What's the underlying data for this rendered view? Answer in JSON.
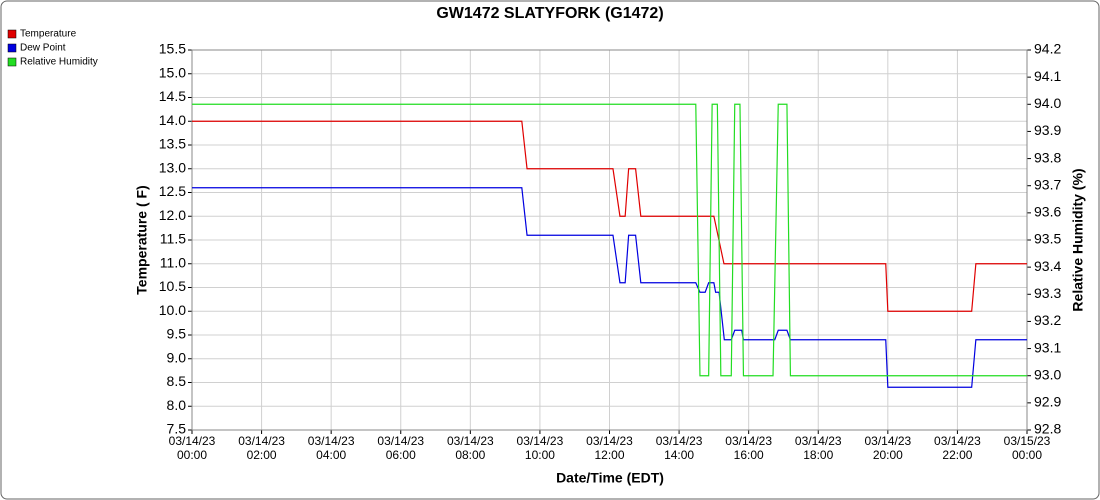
{
  "chart_data": {
    "type": "line",
    "title": "GW1472 SLATYFORK (G1472)",
    "xlabel": "Date/Time (EDT)",
    "ylabel": "Temperature ( F)",
    "y2label": "Relative Humidity (%)",
    "grid": true,
    "legend": "top-left",
    "xlim": [
      0,
      24
    ],
    "xticks": [
      {
        "value": 0,
        "label": "03/14/23\n00:00"
      },
      {
        "value": 2,
        "label": "03/14/23\n02:00"
      },
      {
        "value": 4,
        "label": "03/14/23\n04:00"
      },
      {
        "value": 6,
        "label": "03/14/23\n06:00"
      },
      {
        "value": 8,
        "label": "03/14/23\n08:00"
      },
      {
        "value": 10,
        "label": "03/14/23\n10:00"
      },
      {
        "value": 12,
        "label": "03/14/23\n12:00"
      },
      {
        "value": 14,
        "label": "03/14/23\n14:00"
      },
      {
        "value": 16,
        "label": "03/14/23\n16:00"
      },
      {
        "value": 18,
        "label": "03/14/23\n18:00"
      },
      {
        "value": 20,
        "label": "03/14/23\n20:00"
      },
      {
        "value": 22,
        "label": "03/14/23\n22:00"
      },
      {
        "value": 24,
        "label": "03/15/23\n00:00"
      }
    ],
    "ylim": [
      7.5,
      15.5
    ],
    "yticks": [
      7.5,
      {
        "value": 8,
        "label": "8.0"
      },
      8.5,
      {
        "value": 9,
        "label": "9.0"
      },
      9.5,
      {
        "value": 10,
        "label": "10.0"
      },
      10.5,
      {
        "value": 11,
        "label": "11.0"
      },
      11.5,
      {
        "value": 12,
        "label": "12.0"
      },
      12.5,
      {
        "value": 13,
        "label": "13.0"
      },
      13.5,
      {
        "value": 14,
        "label": "14.0"
      },
      14.5,
      {
        "value": 15,
        "label": "15.0"
      },
      15.5
    ],
    "y2lim": [
      92.8,
      94.2
    ],
    "y2ticks": [
      92.8,
      92.9,
      {
        "value": 93,
        "label": "93.0"
      },
      93.1,
      93.2,
      93.3,
      93.4,
      93.5,
      93.6,
      93.7,
      93.8,
      93.9,
      {
        "value": 94,
        "label": "94.0"
      },
      94.1,
      94.2
    ],
    "series": [
      {
        "name": "Temperature",
        "color": "#e00000",
        "x": [
          0,
          9.48,
          9.63,
          12.1,
          12.3,
          12.45,
          12.55,
          12.75,
          12.9,
          15.0,
          15.29,
          19.94,
          20.0,
          22.41,
          22.53,
          24
        ],
        "values": [
          14,
          14,
          13,
          13,
          12,
          12,
          13,
          13,
          12,
          12,
          11,
          11,
          10,
          10,
          11,
          11
        ]
      },
      {
        "name": "Dew Point",
        "color": "#0000e0",
        "x": [
          0,
          9.48,
          9.63,
          12.1,
          12.3,
          12.45,
          12.55,
          12.75,
          12.9,
          14.48,
          14.6,
          14.75,
          14.85,
          15.0,
          15.05,
          15.15,
          15.3,
          15.5,
          15.6,
          15.8,
          15.85,
          16.75,
          16.85,
          17.1,
          17.2,
          19.94,
          20.0,
          22.41,
          22.53,
          24
        ],
        "values": [
          12.6,
          12.6,
          11.6,
          11.6,
          10.6,
          10.6,
          11.6,
          11.6,
          10.6,
          10.6,
          10.4,
          10.4,
          10.6,
          10.6,
          10.4,
          10.4,
          9.4,
          9.4,
          9.6,
          9.6,
          9.4,
          9.4,
          9.6,
          9.6,
          9.4,
          9.4,
          8.4,
          8.4,
          9.4,
          9.4
        ]
      },
      {
        "name": "Relative Humidity",
        "color": "#22dd22",
        "axis": "y2",
        "x": [
          0,
          14.48,
          14.6,
          14.85,
          14.95,
          15.1,
          15.2,
          15.5,
          15.6,
          15.75,
          15.85,
          16.7,
          16.85,
          17.1,
          17.2,
          24
        ],
        "values": [
          94,
          94,
          93,
          93,
          94,
          94,
          93,
          93,
          94,
          94,
          93,
          93,
          94,
          94,
          93,
          93
        ]
      }
    ]
  }
}
